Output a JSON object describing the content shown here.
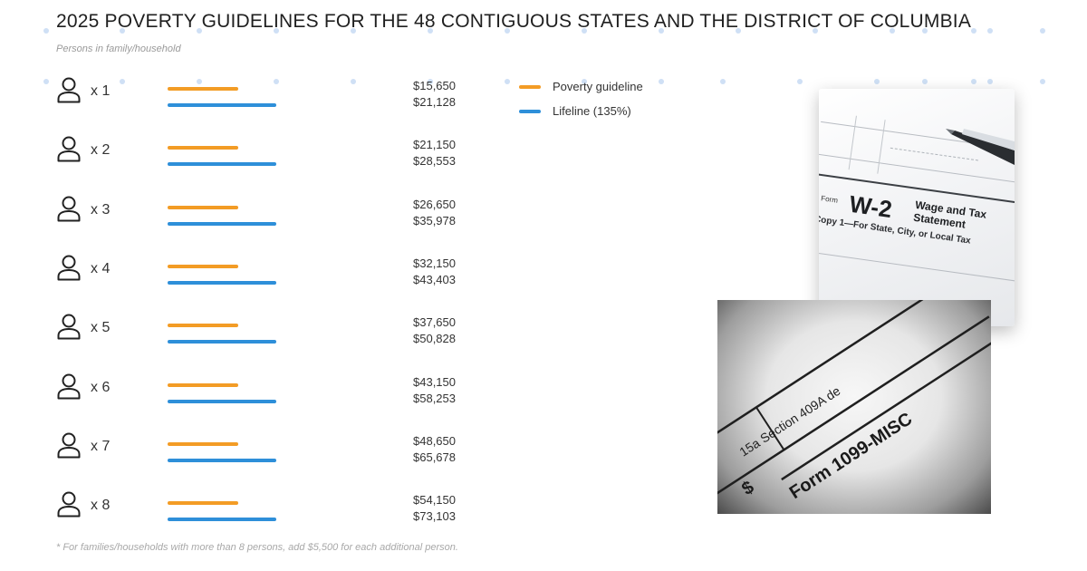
{
  "chart_data": {
    "type": "bar",
    "title": "2025 POVERTY GUIDELINES FOR THE 48 CONTIGUOUS STATES AND THE DISTRICT OF COLUMBIA",
    "subtitle": "Persons in family/household",
    "categories": [
      "x 1",
      "x 2",
      "x 3",
      "x 4",
      "x 5",
      "x 6",
      "x 7",
      "x 8"
    ],
    "series": [
      {
        "name": "Poverty guideline",
        "color": "#f39c25",
        "values": [
          15650,
          21150,
          26650,
          32150,
          37650,
          43150,
          48650,
          54150
        ],
        "labels": [
          "$15,650",
          "$21,150",
          "$26,650",
          "$32,150",
          "$37,650",
          "$43,150",
          "$48,650",
          "$54,150"
        ]
      },
      {
        "name": "Lifeline (135%)",
        "color": "#2e8fd9",
        "values": [
          21128,
          28553,
          35978,
          43403,
          50828,
          58253,
          65678,
          73103
        ],
        "labels": [
          "$21,128",
          "$28,553",
          "$35,978",
          "$43,403",
          "$50,828",
          "$58,253",
          "$65,678",
          "$73,103"
        ]
      }
    ],
    "legend_position": "right",
    "footnote": "* For families/households with more than 8 persons, add $5,500 for each additional person."
  },
  "images": {
    "w2_form": {
      "form_word": "Form",
      "form_number": "W-2",
      "title_line1": "Wage and Tax",
      "title_line2": "Statement",
      "copy_line": "Copy 1—For State, City, or Local Tax"
    },
    "misc_form": {
      "section": "15a Section 409A de",
      "dollar": "$",
      "form_label": "Form 1099-MISC"
    }
  },
  "icons": {
    "person": "person-outline-icon"
  }
}
